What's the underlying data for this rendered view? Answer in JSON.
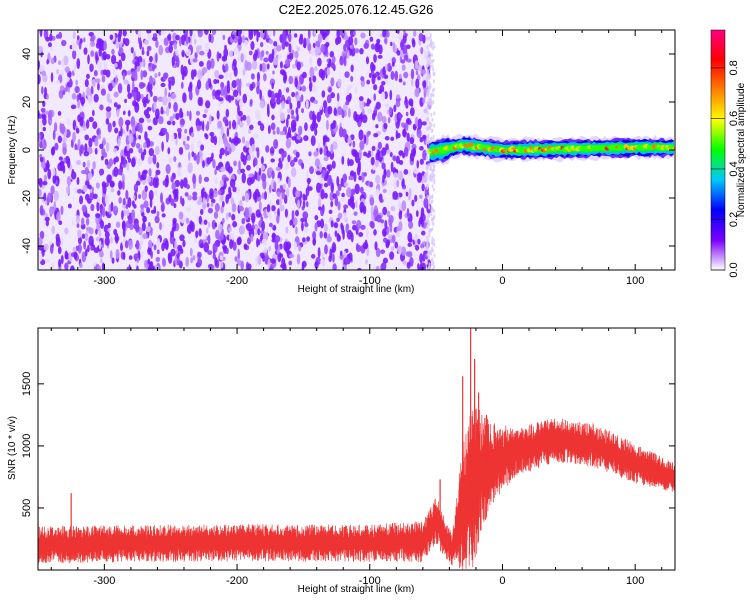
{
  "figure": {
    "title": "C2E2.2025.076.12.45.G26"
  },
  "chart_data": [
    {
      "type": "heatmap",
      "title": "C2E2.2025.076.12.45.G26",
      "xlabel": "Height of straight line (km)",
      "ylabel": "Frequency (Hz)",
      "xlim": [
        -350,
        130
      ],
      "ylim": [
        -50,
        50
      ],
      "xticks": [
        -300,
        -200,
        -100,
        0,
        100
      ],
      "yticks": [
        -40,
        -20,
        0,
        20,
        40
      ],
      "xtick_labels": [
        "-300",
        "-200",
        "-100",
        "0",
        "100"
      ],
      "ytick_labels": [
        "-40",
        "-20",
        "0",
        "20",
        "40"
      ],
      "noise_region_x": [
        -350,
        -55
      ],
      "blank_region_x": [
        -55,
        130
      ],
      "signal_band": {
        "x_start": -55,
        "x_end": 130,
        "center_freq": [
          {
            "x": -55,
            "f": -1
          },
          {
            "x": -45,
            "f": 0
          },
          {
            "x": -30,
            "f": 2
          },
          {
            "x": -15,
            "f": 1
          },
          {
            "x": 0,
            "f": 0
          },
          {
            "x": 50,
            "f": 0.5
          },
          {
            "x": 100,
            "f": 1
          },
          {
            "x": 130,
            "f": 1
          }
        ],
        "peak_amplitude": 0.9
      },
      "colorbar": {
        "label": "Normalized spectral amplitude",
        "range": [
          0.0,
          0.95
        ],
        "ticks": [
          0.0,
          0.2,
          0.4,
          0.6,
          0.8
        ],
        "tick_labels": [
          "0.0",
          "0.2",
          "0.4",
          "0.6",
          "0.8"
        ],
        "colormap": [
          "#ffffff",
          "#7a00ff",
          "#0000ff",
          "#00c8ff",
          "#00ff00",
          "#ffff00",
          "#ff8000",
          "#ff0000",
          "#ff0080"
        ]
      },
      "grid": false
    },
    {
      "type": "line",
      "xlabel": "Height of straight line (km)",
      "ylabel": "SNR (10 * v/v)",
      "xlim": [
        -350,
        130
      ],
      "ylim": [
        0,
        1950
      ],
      "xticks": [
        -300,
        -200,
        -100,
        0,
        100
      ],
      "yticks": [
        500,
        1000,
        1500
      ],
      "xtick_labels": [
        "-300",
        "-200",
        "-100",
        "0",
        "100"
      ],
      "ytick_labels": [
        "500",
        "1000",
        "1500"
      ],
      "series_color": "#ee3333",
      "envelope": [
        {
          "x": -350,
          "base": 200,
          "amp": 150
        },
        {
          "x": -300,
          "base": 210,
          "amp": 150
        },
        {
          "x": -200,
          "base": 220,
          "amp": 150
        },
        {
          "x": -100,
          "base": 215,
          "amp": 150
        },
        {
          "x": -60,
          "base": 230,
          "amp": 170
        },
        {
          "x": -50,
          "base": 400,
          "amp": 200
        },
        {
          "x": -38,
          "base": 150,
          "amp": 130
        },
        {
          "x": -30,
          "base": 500,
          "amp": 500
        },
        {
          "x": -22,
          "base": 700,
          "amp": 700
        },
        {
          "x": -10,
          "base": 850,
          "amp": 350
        },
        {
          "x": 10,
          "base": 950,
          "amp": 200
        },
        {
          "x": 40,
          "base": 1050,
          "amp": 180
        },
        {
          "x": 70,
          "base": 1000,
          "amp": 180
        },
        {
          "x": 100,
          "base": 860,
          "amp": 160
        },
        {
          "x": 130,
          "base": 740,
          "amp": 120
        }
      ],
      "spikes": [
        {
          "x": -350,
          "y": 600
        },
        {
          "x": -325,
          "y": 620
        },
        {
          "x": -47,
          "y": 730
        },
        {
          "x": -30,
          "y": 1560
        },
        {
          "x": -24,
          "y": 1950
        },
        {
          "x": -21,
          "y": 1700
        },
        {
          "x": -18,
          "y": 1430
        },
        {
          "x": -12,
          "y": 1250
        }
      ],
      "grid": false
    }
  ]
}
